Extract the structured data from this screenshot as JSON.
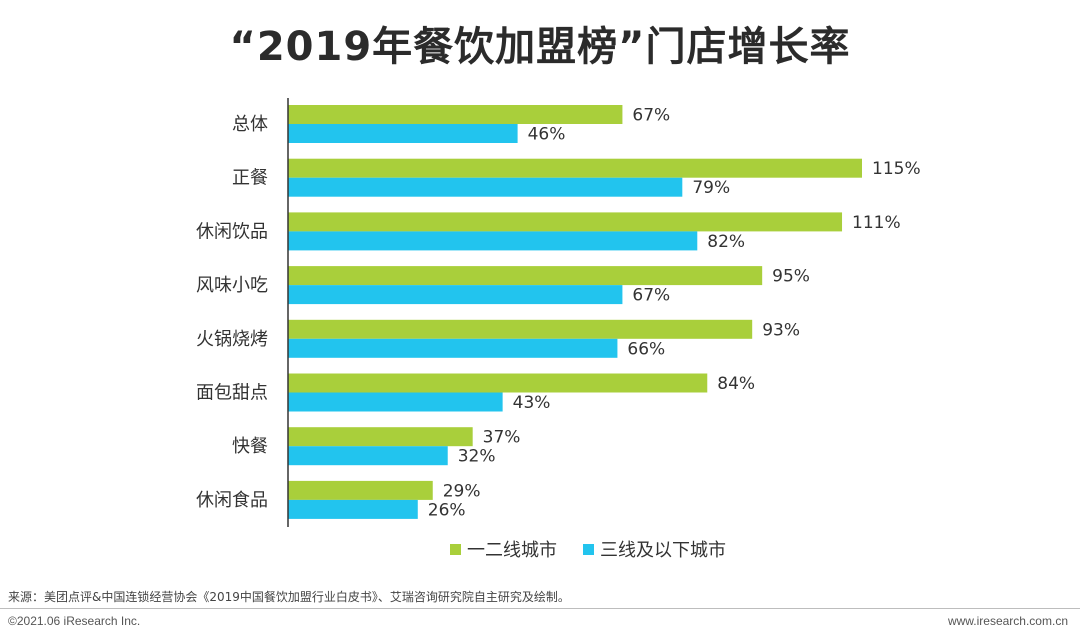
{
  "chart_data": {
    "type": "bar",
    "orientation": "horizontal",
    "title": "“2019年餐饮加盟榜”门店增长率",
    "categories": [
      "总体",
      "正餐",
      "休闲饮品",
      "风味小吃",
      "火锅烧烤",
      "面包甜点",
      "快餐",
      "休闲食品"
    ],
    "series": [
      {
        "name": "一二线城市",
        "color": "#a9cf3b",
        "values": [
          67,
          115,
          111,
          95,
          93,
          84,
          37,
          29
        ]
      },
      {
        "name": "三线及以下城市",
        "color": "#22c4ee",
        "values": [
          46,
          79,
          82,
          67,
          66,
          43,
          32,
          26
        ]
      }
    ],
    "value_suffix": "%",
    "xlim": [
      0,
      115
    ],
    "legend_position": "bottom"
  },
  "source": "来源：美团点评&中国连锁经营协会《2019中国餐饮加盟行业白皮书》、艾瑞咨询研究院自主研究及绘制。",
  "footer": {
    "copyright": "©2021.06 iResearch Inc.",
    "website": "www.iresearch.com.cn"
  }
}
